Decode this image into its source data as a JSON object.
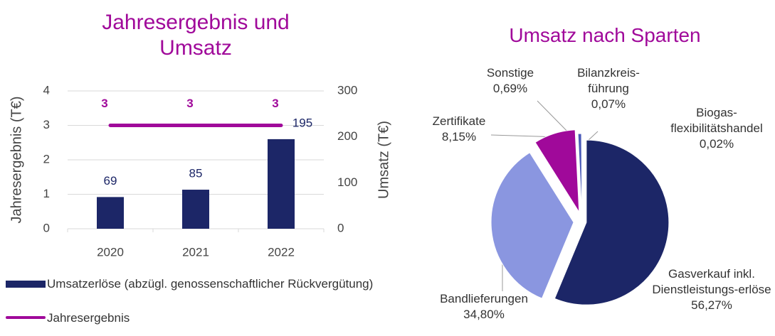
{
  "chart_data": [
    {
      "type": "combo",
      "title": "Jahresergebnis und Umsatz",
      "ylabel": "Jahresergebnis (T€)",
      "y2label": "Umsatz (T€)",
      "categories": [
        "2020",
        "2021",
        "2022"
      ],
      "ylim": [
        0,
        4
      ],
      "yticks": [
        0,
        1,
        2,
        3,
        4
      ],
      "y2lim": [
        0,
        300
      ],
      "y2ticks": [
        0,
        100,
        200,
        300
      ],
      "grid": true,
      "series": [
        {
          "name": "Umsatzerlöse (abzügl. genossenschaftlicher Rückvergütung)",
          "type": "bar",
          "axis": "y2",
          "color": "#1c2667",
          "values": [
            69,
            85,
            195
          ]
        },
        {
          "name": "Jahresergebnis",
          "type": "line",
          "axis": "y",
          "color": "#a0099a",
          "values": [
            3,
            3,
            3
          ]
        }
      ]
    },
    {
      "type": "pie",
      "title": "Umsatz nach Sparten",
      "categories": [
        "Gasverkauf inkl. Dienstleistungs-erlöse",
        "Bandlieferungen",
        "Zertifikate",
        "Sonstige",
        "Bilanzkreis-führung",
        "Biogas-flexibilitätshandel"
      ],
      "values": [
        56.27,
        34.8,
        8.15,
        0.69,
        0.07,
        0.02
      ],
      "value_labels": [
        "56,27%",
        "34,80%",
        "8,15%",
        "0,69%",
        "0,07%",
        "0,02%"
      ],
      "colors": [
        "#1c2667",
        "#8a96e0",
        "#a0099a",
        "#4a5ab8",
        "#c9cff2",
        "#6b1a6b"
      ]
    }
  ]
}
